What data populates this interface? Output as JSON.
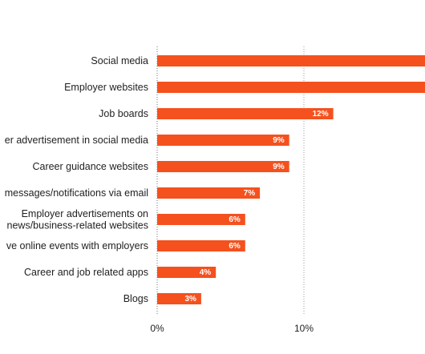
{
  "chart_data": {
    "type": "bar",
    "orientation": "horizontal",
    "categories": [
      [
        "Social media"
      ],
      [
        "Employer websites"
      ],
      [
        "Job boards"
      ],
      [
        "er advertisement in social media"
      ],
      [
        "Career guidance websites"
      ],
      [
        "messages/notifications via email"
      ],
      [
        "Employer advertisements on",
        "news/business-related websites"
      ],
      [
        "ve online events with employers"
      ],
      [
        "Career and job related apps"
      ],
      [
        "Blogs"
      ]
    ],
    "values": [
      null,
      null,
      12,
      9,
      9,
      7,
      6,
      6,
      4,
      3
    ],
    "value_labels": [
      "",
      "",
      "12%",
      "9%",
      "9%",
      "7%",
      "6%",
      "6%",
      "4%",
      "3%"
    ],
    "xticks": [
      {
        "value": 0,
        "label": "0%"
      },
      {
        "value": 10,
        "label": "10%"
      }
    ],
    "xlim": [
      0,
      19
    ],
    "bar_color": "#f4511e",
    "grid": "vertical"
  }
}
